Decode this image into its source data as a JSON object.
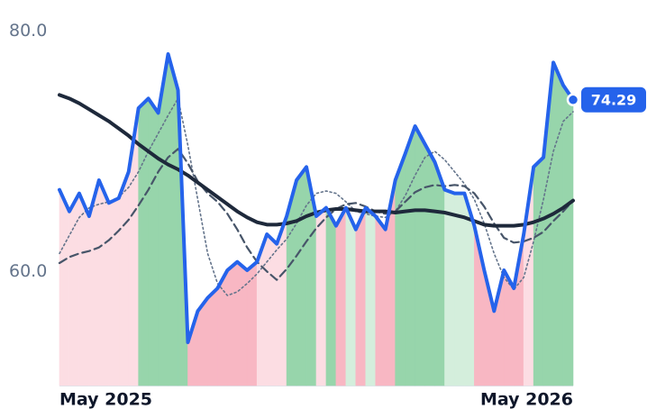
{
  "chart_data": {
    "type": "line",
    "categories": [
      "May 2025",
      null,
      null,
      null,
      null,
      null,
      null,
      null,
      null,
      null,
      null,
      null,
      null,
      null,
      null,
      null,
      null,
      null,
      null,
      null,
      null,
      null,
      null,
      null,
      null,
      null,
      null,
      null,
      null,
      null,
      null,
      null,
      null,
      null,
      null,
      null,
      null,
      null,
      null,
      null,
      null,
      null,
      null,
      null,
      null,
      null,
      null,
      null,
      null,
      null,
      null,
      null,
      "May 2026"
    ],
    "series": [
      {
        "color": "#2563eb",
        "style": "solid",
        "width": 4,
        "values": [
          66.8,
          65.0,
          66.5,
          64.6,
          67.6,
          65.7,
          66.1,
          68.3,
          73.6,
          74.4,
          73.2,
          78.1,
          75.1,
          54.1,
          56.7,
          57.8,
          58.6,
          60.1,
          60.8,
          60.1,
          60.8,
          63.1,
          62.3,
          64.6,
          67.6,
          68.7,
          64.6,
          65.3,
          63.8,
          65.3,
          63.5,
          65.3,
          64.6,
          63.5,
          67.6,
          69.8,
          72.1,
          70.6,
          69.1,
          66.8,
          66.5,
          66.5,
          63.8,
          60.1,
          56.7,
          60.1,
          58.6,
          63.1,
          68.7,
          69.5,
          77.4,
          75.5,
          74.29
        ]
      },
      {
        "color": "#1e293b",
        "style": "solid",
        "width": 4,
        "values": [
          74.7,
          74.4,
          74.0,
          73.5,
          73.0,
          72.5,
          71.9,
          71.3,
          70.6,
          70.0,
          69.4,
          68.9,
          68.5,
          68.0,
          67.4,
          66.8,
          66.2,
          65.6,
          65.0,
          64.5,
          64.1,
          63.9,
          63.9,
          64.0,
          64.2,
          64.6,
          64.9,
          65.1,
          65.2,
          65.2,
          65.1,
          65.0,
          65.0,
          65.0,
          64.9,
          65.0,
          65.1,
          65.1,
          65.0,
          64.9,
          64.7,
          64.5,
          64.2,
          63.9,
          63.8,
          63.8,
          63.8,
          63.9,
          64.1,
          64.4,
          64.8,
          65.3,
          65.9
        ]
      },
      {
        "color": "#475569",
        "style": "dashed",
        "width": 2.2,
        "values": [
          60.7,
          61.2,
          61.5,
          61.7,
          62.0,
          62.6,
          63.4,
          64.3,
          65.5,
          66.8,
          68.3,
          69.5,
          70.2,
          69.0,
          67.5,
          66.5,
          65.8,
          64.8,
          63.5,
          62.0,
          60.8,
          60.0,
          59.3,
          60.2,
          61.3,
          62.5,
          63.6,
          64.5,
          65.2,
          65.6,
          65.7,
          65.4,
          65.0,
          64.8,
          65.0,
          65.8,
          66.6,
          67.0,
          67.2,
          67.1,
          67.2,
          67.1,
          66.5,
          65.4,
          64.0,
          62.8,
          62.4,
          62.5,
          62.8,
          63.3,
          64.2,
          65.0,
          65.9
        ]
      },
      {
        "color": "#64748b",
        "style": "dotted",
        "width": 1.6,
        "values": [
          61.5,
          63.0,
          64.5,
          65.3,
          65.6,
          65.8,
          66.2,
          67.0,
          68.3,
          70.0,
          71.5,
          73.0,
          74.4,
          70.5,
          66.0,
          61.5,
          59.0,
          58.0,
          58.3,
          59.0,
          59.8,
          60.8,
          61.8,
          62.7,
          64.0,
          65.5,
          66.5,
          66.7,
          66.5,
          65.8,
          65.0,
          64.8,
          64.6,
          64.5,
          65.0,
          66.3,
          68.0,
          69.5,
          70.0,
          69.3,
          68.3,
          67.3,
          66.0,
          64.0,
          61.5,
          59.5,
          58.5,
          59.5,
          62.5,
          66.0,
          70.0,
          72.5,
          73.3
        ]
      }
    ],
    "fill": {
      "up": [
        "#d4eedc",
        "#97d5ab"
      ],
      "down": [
        "#fcdde3",
        "#f8b7c3"
      ]
    },
    "ylim": [
      50.5,
      82.6
    ],
    "yticks": [
      {
        "value": 60,
        "label": "60.0"
      },
      {
        "value": 80,
        "label": "80.0"
      }
    ],
    "last_value_color": "#2563eb"
  }
}
